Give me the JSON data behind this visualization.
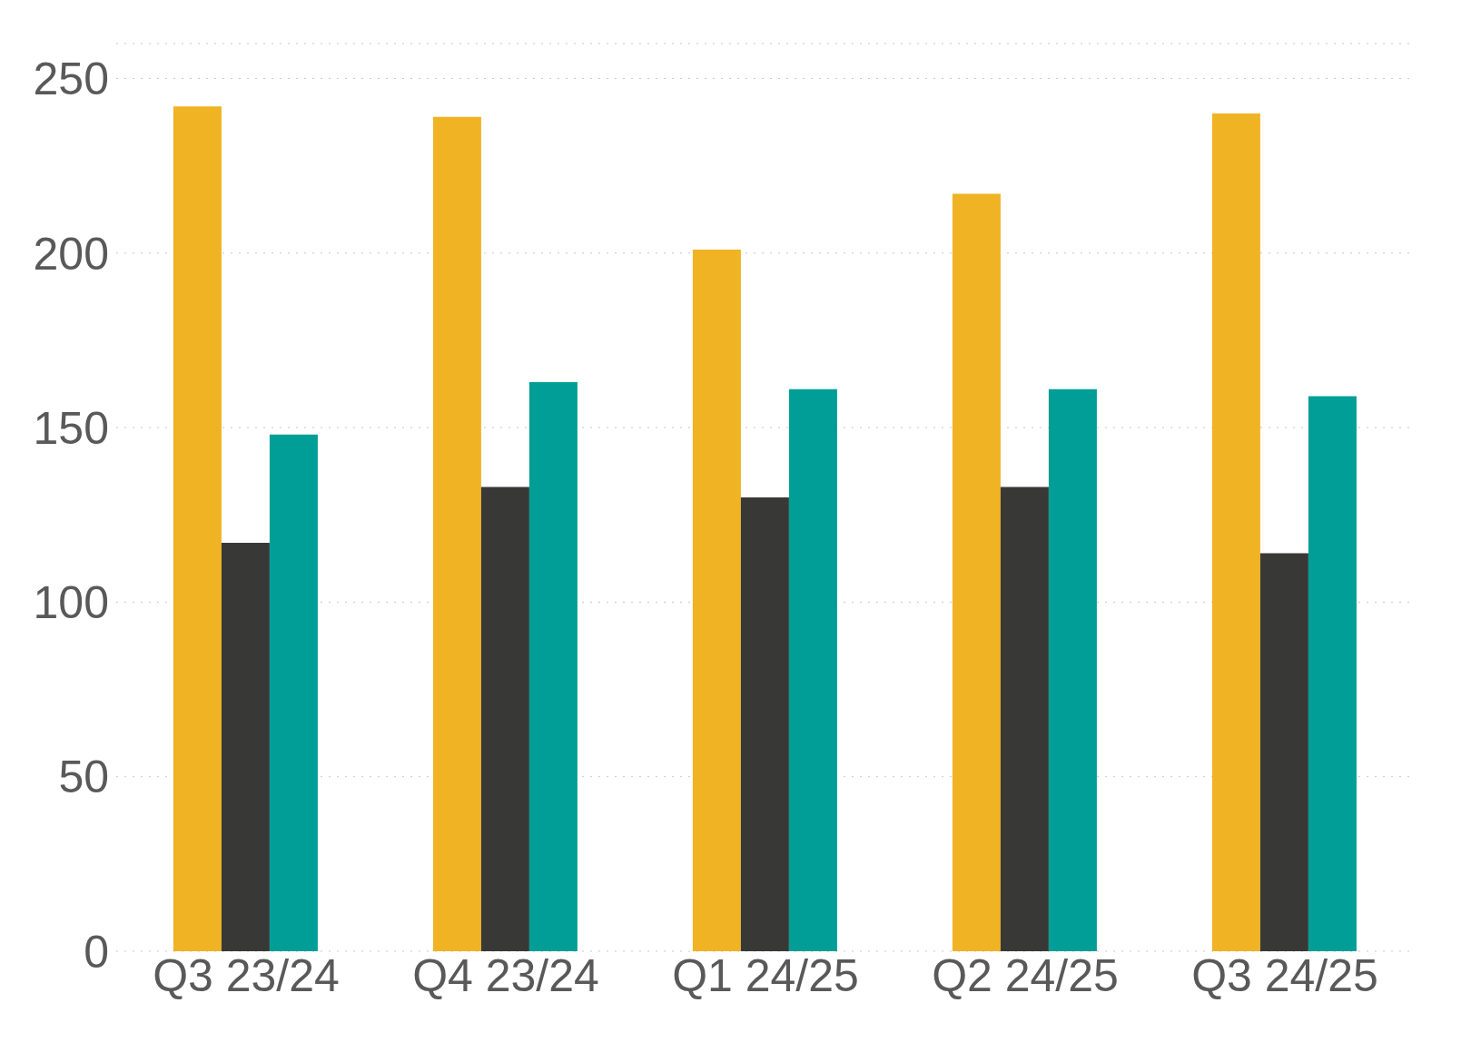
{
  "chart_data": {
    "type": "bar",
    "categories": [
      "Q3 23/24",
      "Q4 23/24",
      "Q1 24/25",
      "Q2 24/25",
      "Q3 24/25"
    ],
    "series": [
      {
        "color": "#efb324",
        "values": [
          242,
          239,
          201,
          217,
          240
        ]
      },
      {
        "color": "#383936",
        "values": [
          117,
          133,
          130,
          133,
          114
        ]
      },
      {
        "color": "#009e96",
        "values": [
          148,
          163,
          161,
          161,
          159
        ]
      }
    ],
    "ylim": [
      0,
      260
    ],
    "yticks": [
      0,
      50,
      100,
      150,
      200,
      250
    ],
    "grid": "y"
  }
}
